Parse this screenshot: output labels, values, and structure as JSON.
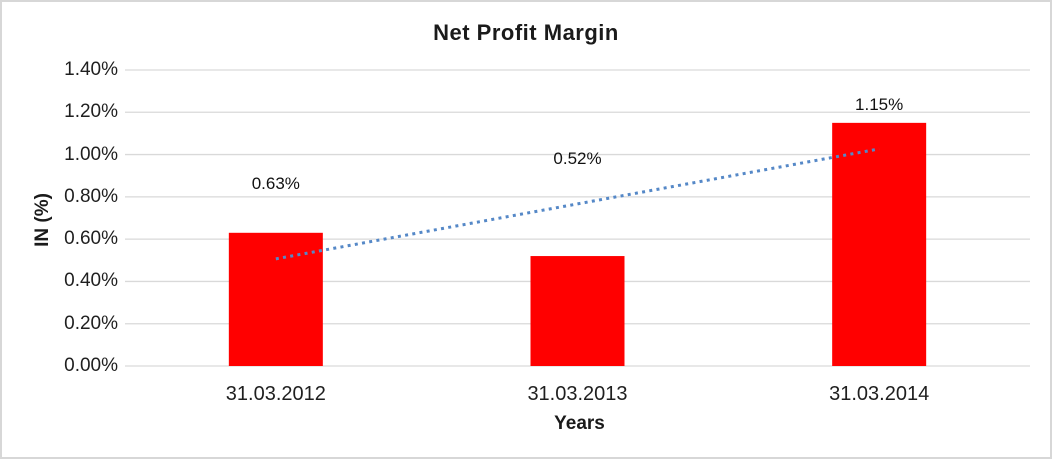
{
  "chart_data": {
    "type": "bar",
    "title": "Net Profit Margin",
    "xlabel": "Years",
    "ylabel": "IN (%)",
    "categories": [
      "31.03.2012",
      "31.03.2013",
      "31.03.2014"
    ],
    "series": [
      {
        "name": "Net Profit Margin",
        "values": [
          0.63,
          0.52,
          1.15
        ]
      }
    ],
    "data_labels": [
      "0.63%",
      "0.52%",
      "1.15%"
    ],
    "y_ticks": [
      "0.00%",
      "0.20%",
      "0.40%",
      "0.60%",
      "0.80%",
      "1.00%",
      "1.20%",
      "1.40%"
    ],
    "ylim": [
      0,
      1.4
    ],
    "grid": true,
    "legend": "none",
    "bar_color": "#FF0000",
    "gridline_color": "#D9D9D9",
    "trendline": {
      "type": "linear",
      "style": "dotted",
      "color": "#5588C7",
      "start_value": 0.5067,
      "end_value": 1.0267
    }
  }
}
